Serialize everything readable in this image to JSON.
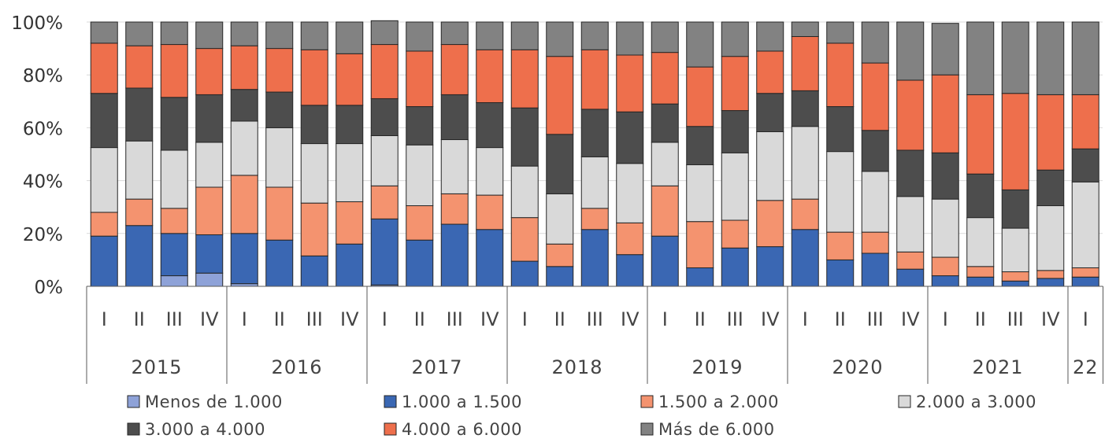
{
  "chart_data": {
    "type": "bar",
    "stacked": true,
    "percent": true,
    "ylim": [
      0,
      100
    ],
    "yticks": [
      0,
      20,
      40,
      60,
      80,
      100
    ],
    "ytick_labels": [
      "0%",
      "20%",
      "40%",
      "60%",
      "80%",
      "100%"
    ],
    "grid": true,
    "legend_position": "bottom",
    "years": [
      {
        "label": "2015",
        "quarters": [
          "I",
          "II",
          "III",
          "IV"
        ]
      },
      {
        "label": "2016",
        "quarters": [
          "I",
          "II",
          "III",
          "IV"
        ]
      },
      {
        "label": "2017",
        "quarters": [
          "I",
          "II",
          "III",
          "IV"
        ]
      },
      {
        "label": "2018",
        "quarters": [
          "I",
          "II",
          "III",
          "IV"
        ]
      },
      {
        "label": "2019",
        "quarters": [
          "I",
          "II",
          "III",
          "IV"
        ]
      },
      {
        "label": "2020",
        "quarters": [
          "I",
          "II",
          "III",
          "IV"
        ]
      },
      {
        "label": "2021",
        "quarters": [
          "I",
          "II",
          "III",
          "IV"
        ]
      },
      {
        "label": "22",
        "quarters": [
          "I"
        ]
      }
    ],
    "series": [
      {
        "name": "Menos de 1.000",
        "color": "#8EA2D8",
        "values": [
          0,
          0,
          4,
          5,
          1,
          0,
          0,
          0,
          0.5,
          0,
          0,
          0,
          0,
          0,
          0,
          0,
          0,
          0,
          0,
          0,
          0,
          0,
          0,
          0,
          0,
          0,
          0,
          0,
          0
        ]
      },
      {
        "name": "1.000 a 1.500",
        "color": "#3A67B3",
        "values": [
          19,
          23,
          16,
          14.5,
          19,
          17.5,
          11.5,
          16,
          25,
          17.5,
          23.5,
          21.5,
          9.5,
          7.5,
          21.5,
          12,
          19,
          7,
          14.5,
          15,
          21.5,
          10,
          12.5,
          6.5,
          4,
          3.5,
          2,
          3,
          3.5
        ]
      },
      {
        "name": "1.500 a 2.000",
        "color": "#F4936F",
        "values": [
          9,
          10,
          9.5,
          18,
          22,
          20,
          20,
          16,
          12.5,
          13,
          11.5,
          13,
          16.5,
          8.5,
          8,
          12,
          19,
          17.5,
          10.5,
          17.5,
          11.5,
          10.5,
          8,
          6.5,
          7,
          4,
          3.5,
          3,
          3.5
        ]
      },
      {
        "name": "2.000 a 3.000",
        "color": "#D9D9D9",
        "values": [
          24.5,
          22,
          22,
          17,
          20.5,
          22.5,
          22.5,
          22,
          19,
          23,
          20.5,
          18,
          19.5,
          19,
          19.5,
          22.5,
          16.5,
          21.5,
          25.5,
          26,
          27.5,
          30.5,
          23,
          21,
          22,
          18.5,
          16.5,
          24.5,
          32.5
        ]
      },
      {
        "name": "3.000 a 4.000",
        "color": "#4D4D4D",
        "values": [
          20.5,
          20,
          20,
          18,
          12,
          13.5,
          14.5,
          14.5,
          14,
          14.5,
          17,
          17,
          22,
          22.5,
          18,
          19.5,
          14.5,
          14.5,
          16,
          14.5,
          13.5,
          17,
          15.5,
          17.5,
          17.5,
          16.5,
          14.5,
          13.5,
          12.5
        ]
      },
      {
        "name": "4.000 a 6.000",
        "color": "#EE6F4C",
        "values": [
          19,
          16,
          20,
          17.5,
          16.5,
          16.5,
          21,
          19.5,
          20.5,
          21,
          19,
          20,
          22,
          29.5,
          22.5,
          21.5,
          19.5,
          22.5,
          20.5,
          16,
          20.5,
          24,
          25.5,
          26.5,
          29.5,
          30,
          36.5,
          28.5,
          20.5
        ]
      },
      {
        "name": "Más de 6.000",
        "color": "#828282",
        "values": [
          8,
          9,
          8.5,
          10,
          9,
          10,
          10.5,
          12,
          9,
          11,
          8.5,
          10.5,
          10.5,
          13,
          10.5,
          12.5,
          11.5,
          17,
          13,
          11,
          5.5,
          8,
          15.5,
          22,
          19.5,
          27.5,
          27,
          27.5,
          27.5
        ]
      }
    ]
  }
}
